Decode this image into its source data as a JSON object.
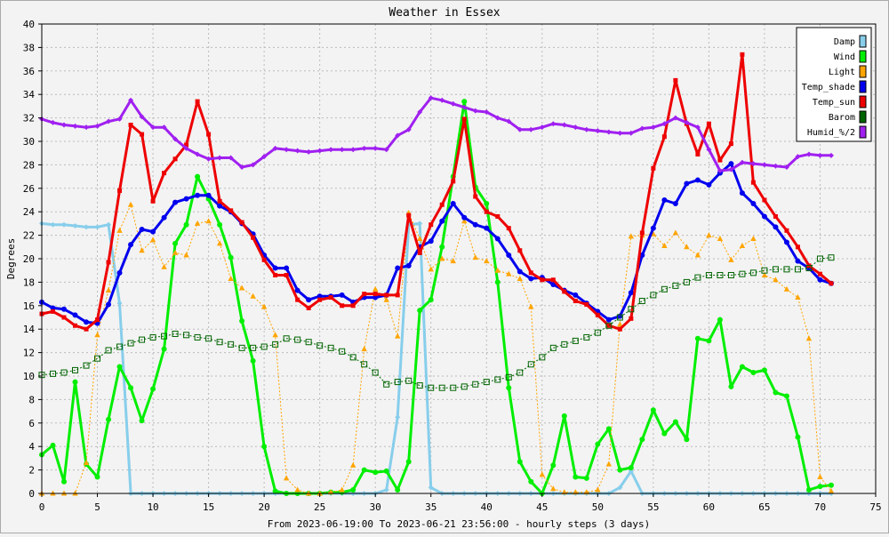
{
  "chart_data": {
    "type": "line",
    "title": "Weather in Essex",
    "xlabel": "From 2023-06-19:00 To 2023-06-21 23:56:00 - hourly steps (3 days)",
    "ylabel": "Degrees",
    "xlim": [
      0,
      75
    ],
    "ylim": [
      0,
      40
    ],
    "xticks": [
      0,
      5,
      10,
      15,
      20,
      25,
      30,
      35,
      40,
      45,
      50,
      55,
      60,
      65,
      70,
      75
    ],
    "yticks": [
      0,
      2,
      4,
      6,
      8,
      10,
      12,
      14,
      16,
      18,
      20,
      22,
      24,
      26,
      28,
      30,
      32,
      34,
      36,
      38,
      40
    ],
    "grid": true,
    "legend_position": "top-right",
    "series": [
      {
        "name": "Damp",
        "color": "#87ceeb",
        "marker": "diamond",
        "dashed": false,
        "values": [
          23,
          22.9,
          22.9,
          22.8,
          22.7,
          22.7,
          22.9,
          16.2,
          0,
          0,
          0,
          0,
          0,
          0,
          0,
          0,
          0,
          0,
          0,
          0,
          0,
          0,
          0,
          0,
          0,
          0,
          0,
          0,
          0,
          0,
          0,
          0.3,
          6.5,
          22.9,
          23,
          0.5,
          0,
          0,
          0,
          0,
          0,
          0,
          0,
          0,
          0,
          0,
          0,
          0,
          0,
          0,
          0,
          0,
          0.5,
          1.9,
          0,
          0,
          0,
          0,
          0,
          0,
          0,
          0,
          0,
          0,
          0,
          0,
          0,
          0,
          0,
          0,
          0,
          0
        ]
      },
      {
        "name": "Wind",
        "color": "#00ee00",
        "marker": "circle",
        "dashed": false,
        "values": [
          3.3,
          4.1,
          1,
          9.5,
          2.5,
          1.4,
          6.3,
          10.8,
          9,
          6.2,
          8.9,
          12.3,
          21.3,
          22.9,
          27,
          25.1,
          22.9,
          20.1,
          14.7,
          11.3,
          4,
          0.2,
          0,
          0,
          0,
          0,
          0.1,
          0.1,
          0.3,
          2,
          1.8,
          1.9,
          0.3,
          2.7,
          15.6,
          16.5,
          21,
          27,
          33.4,
          26.1,
          24.7,
          18,
          9,
          2.7,
          1,
          0,
          2.4,
          6.6,
          1.4,
          1.3,
          4.2,
          5.5,
          2,
          2.2,
          4.6,
          7.1,
          5.1,
          6.1,
          4.6,
          13.2,
          13,
          14.8,
          9.1,
          10.8,
          10.3,
          10.5,
          8.6,
          8.3,
          4.8,
          0.3,
          0.6,
          0.7
        ]
      },
      {
        "name": "Light",
        "color": "#ffa500",
        "marker": "triangle",
        "dashed": true,
        "values": [
          0,
          0,
          0,
          0,
          2.6,
          13.5,
          17.3,
          22.4,
          24.6,
          20.7,
          21.6,
          19.3,
          20.5,
          20.3,
          23,
          23.2,
          21.3,
          18.3,
          17.5,
          16.8,
          15.9,
          13.5,
          1.3,
          0.3,
          0,
          0,
          0.1,
          0.3,
          2.4,
          12.3,
          17.4,
          16.5,
          13.4,
          23.9,
          21.7,
          19.1,
          20,
          19.8,
          23.2,
          20.1,
          19.8,
          19,
          18.7,
          18.3,
          15.9,
          1.6,
          0.4,
          0.1,
          0.1,
          0.1,
          0.3,
          2.5,
          14.4,
          21.9,
          22,
          22.1,
          21.1,
          22.2,
          21,
          20.3,
          22,
          21.7,
          19.9,
          21.1,
          21.7,
          18.6,
          18.2,
          17.4,
          16.7,
          13.2,
          1.4,
          0.2
        ]
      },
      {
        "name": "Temp_shade",
        "color": "#0000ee",
        "marker": "circle",
        "dashed": false,
        "values": [
          16.3,
          15.8,
          15.7,
          15.2,
          14.6,
          14.5,
          16.1,
          18.8,
          21.2,
          22.5,
          22.3,
          23.5,
          24.8,
          25.1,
          25.4,
          25.4,
          24.5,
          24,
          23,
          22.1,
          20.3,
          19.2,
          19.2,
          17.3,
          16.5,
          16.8,
          16.8,
          16.9,
          16.3,
          16.7,
          16.7,
          16.9,
          19.2,
          19.4,
          21,
          21.5,
          23.2,
          24.7,
          23.5,
          22.9,
          22.6,
          21.7,
          20.3,
          18.9,
          18.3,
          18.4,
          17.8,
          17.3,
          16.9,
          16.2,
          15.5,
          14.8,
          15.1,
          17.1,
          20.3,
          22.6,
          25,
          24.7,
          26.4,
          26.7,
          26.3,
          27.3,
          28.1,
          25.6,
          24.7,
          23.6,
          22.7,
          21.4,
          19.8,
          19.2,
          18.2,
          17.9
        ]
      },
      {
        "name": "Temp_sun",
        "color": "#ee0000",
        "marker": "square",
        "dashed": false,
        "values": [
          15.3,
          15.5,
          15,
          14.3,
          14,
          14.8,
          19.7,
          25.8,
          31.4,
          30.6,
          24.9,
          27.3,
          28.5,
          29.7,
          33.4,
          30.6,
          24.9,
          24.1,
          23.1,
          21.8,
          19.9,
          18.6,
          18.6,
          16.5,
          15.8,
          16.5,
          16.7,
          16,
          16,
          17,
          17,
          16.9,
          16.9,
          23.7,
          20.5,
          22.9,
          24.6,
          26.6,
          31.9,
          25.3,
          24,
          23.6,
          22.6,
          20.7,
          18.8,
          18.2,
          18.2,
          17.2,
          16.4,
          16.1,
          15.2,
          14.3,
          14,
          14.9,
          22.2,
          27.7,
          30.4,
          35.2,
          31.5,
          28.9,
          31.5,
          28.4,
          29.8,
          37.4,
          26.5,
          25,
          23.6,
          22.4,
          21,
          19.4,
          18.7,
          17.9
        ]
      },
      {
        "name": "Barom",
        "color": "#006400",
        "marker": "square-open",
        "dashed": true,
        "values": [
          10.1,
          10.2,
          10.3,
          10.5,
          10.9,
          11.5,
          12.2,
          12.5,
          12.8,
          13.1,
          13.3,
          13.4,
          13.6,
          13.5,
          13.3,
          13.2,
          12.9,
          12.7,
          12.4,
          12.4,
          12.5,
          12.7,
          13.2,
          13.1,
          12.9,
          12.6,
          12.4,
          12.1,
          11.6,
          11,
          10.3,
          9.3,
          9.5,
          9.6,
          9.2,
          9,
          9,
          9,
          9.1,
          9.3,
          9.5,
          9.7,
          9.9,
          10.3,
          11,
          11.6,
          12.4,
          12.7,
          13,
          13.3,
          13.7,
          14.3,
          15,
          15.7,
          16.4,
          16.9,
          17.4,
          17.7,
          18,
          18.4,
          18.6,
          18.6,
          18.6,
          18.7,
          18.8,
          19,
          19.1,
          19.1,
          19.1,
          19.2,
          20,
          20.1
        ]
      },
      {
        "name": "Humid_%/2",
        "color": "#a020f0",
        "marker": "diamond",
        "dashed": false,
        "values": [
          31.9,
          31.6,
          31.4,
          31.3,
          31.2,
          31.3,
          31.7,
          31.9,
          33.5,
          32.1,
          31.2,
          31.2,
          30.2,
          29.4,
          28.9,
          28.5,
          28.6,
          28.6,
          27.8,
          28,
          28.7,
          29.4,
          29.3,
          29.2,
          29.1,
          29.2,
          29.3,
          29.3,
          29.3,
          29.4,
          29.4,
          29.3,
          30.5,
          31,
          32.5,
          33.7,
          33.5,
          33.2,
          32.9,
          32.6,
          32.5,
          32,
          31.7,
          31,
          31,
          31.2,
          31.5,
          31.4,
          31.2,
          31,
          30.9,
          30.8,
          30.7,
          30.7,
          31.1,
          31.2,
          31.5,
          32,
          31.6,
          31.2,
          29.3,
          27.5,
          27.6,
          28.2,
          28.1,
          28,
          27.9,
          27.8,
          28.7,
          28.9,
          28.8,
          28.8
        ]
      }
    ]
  }
}
